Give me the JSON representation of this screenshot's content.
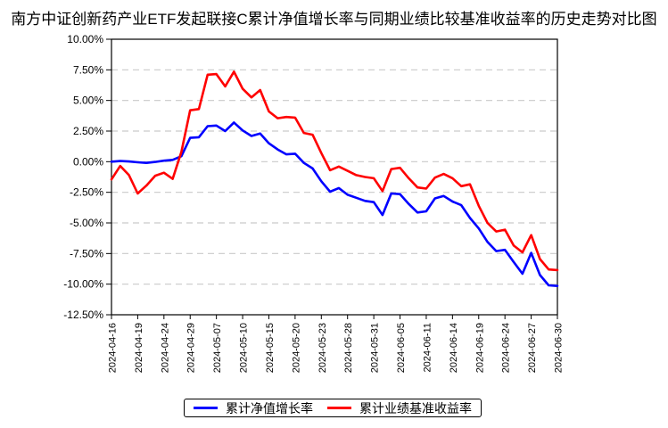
{
  "title": "南方中证创新药产业ETF发起联接C累计净值增长率与同期业绩比较基准收益率的历史走势对比图",
  "legend": {
    "items": [
      {
        "label": "累计净值增长率",
        "color": "#0000ff"
      },
      {
        "label": "累计业绩基准收益率",
        "color": "#ff0000"
      }
    ]
  },
  "chart_data": {
    "type": "line",
    "title": "南方中证创新药产业ETF发起联接C累计净值增长率与同期业绩比较基准收益率的历史走势对比图",
    "xlabel": "",
    "ylabel": "",
    "ylim": [
      -12.5,
      10
    ],
    "grid": "horizontal-dashed",
    "legend_position": "bottom",
    "y_ticks": [
      10,
      7.5,
      5,
      2.5,
      0,
      -2.5,
      -5,
      -7.5,
      -10,
      -12.5
    ],
    "y_tick_labels": [
      "10.00%",
      "7.50%",
      "5.00%",
      "2.50%",
      "0.00%",
      "-2.50%",
      "-5.00%",
      "-7.50%",
      "-10.00%",
      "-12.50%"
    ],
    "x_tick_labels": [
      "2024-04-16",
      "2024-04-19",
      "2024-04-24",
      "2024-04-29",
      "2024-05-07",
      "2024-05-10",
      "2024-05-15",
      "2024-05-20",
      "2024-05-23",
      "2024-05-28",
      "2024-05-31",
      "2024-06-05",
      "2024-06-11",
      "2024-06-14",
      "2024-06-19",
      "2024-06-24",
      "2024-06-27",
      "2024-06-30"
    ],
    "x_tick_indices": [
      0,
      3,
      6,
      9,
      12,
      15,
      18,
      21,
      24,
      27,
      30,
      33,
      36,
      39,
      42,
      45,
      48,
      51
    ],
    "n_points": 52,
    "series": [
      {
        "name": "累计净值增长率",
        "color": "#0000ff",
        "values": [
          0.0,
          0.05,
          0.02,
          -0.05,
          -0.1,
          -0.02,
          0.08,
          0.15,
          0.45,
          1.95,
          2.0,
          2.9,
          2.95,
          2.5,
          3.2,
          2.55,
          2.1,
          2.3,
          1.5,
          1.0,
          0.6,
          0.65,
          -0.1,
          -0.55,
          -1.6,
          -2.45,
          -2.15,
          -2.7,
          -2.95,
          -3.2,
          -3.3,
          -4.35,
          -2.6,
          -2.65,
          -3.45,
          -4.15,
          -4.05,
          -3.0,
          -2.8,
          -3.25,
          -3.55,
          -4.6,
          -5.45,
          -6.55,
          -7.3,
          -7.2,
          -8.2,
          -9.15,
          -7.45,
          -9.25,
          -10.1,
          -10.15
        ]
      },
      {
        "name": "累计业绩基准收益率",
        "color": "#ff0000",
        "values": [
          -1.45,
          -0.35,
          -1.1,
          -2.6,
          -1.95,
          -1.15,
          -0.9,
          -1.4,
          0.8,
          4.2,
          4.3,
          7.1,
          7.15,
          6.15,
          7.35,
          5.95,
          5.25,
          5.85,
          4.1,
          3.55,
          3.65,
          3.6,
          2.35,
          2.2,
          0.7,
          -0.7,
          -0.4,
          -0.75,
          -1.1,
          -1.25,
          -1.35,
          -2.4,
          -0.6,
          -0.5,
          -1.35,
          -2.1,
          -2.2,
          -1.3,
          -1.0,
          -1.35,
          -2.0,
          -1.85,
          -3.6,
          -5.0,
          -5.7,
          -5.55,
          -6.85,
          -7.4,
          -6.0,
          -7.95,
          -8.8,
          -8.85
        ]
      }
    ]
  }
}
